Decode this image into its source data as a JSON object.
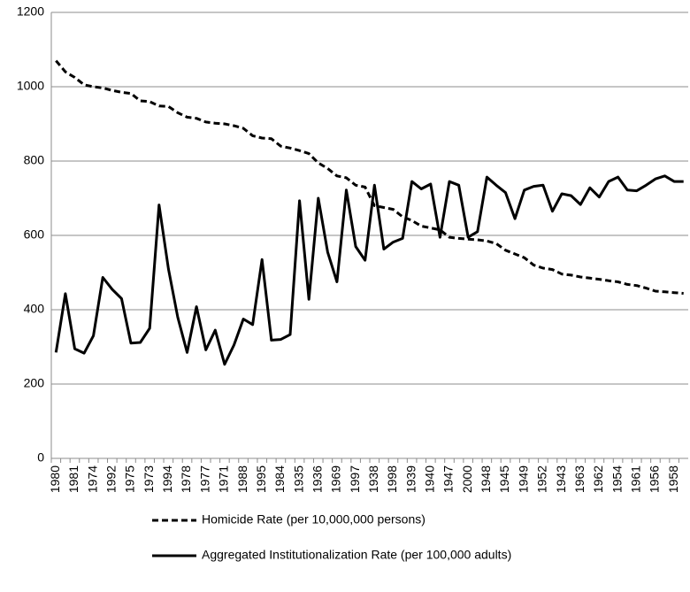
{
  "chart_data": {
    "type": "line",
    "categories": [
      "1980",
      null,
      "1981",
      null,
      "1974",
      null,
      "1992",
      null,
      "1975",
      null,
      "1973",
      null,
      "1994",
      null,
      "1978",
      null,
      "1977",
      null,
      "1971",
      null,
      "1988",
      null,
      "1995",
      null,
      "1984",
      null,
      "1935",
      null,
      "1936",
      null,
      "1969",
      null,
      "1997",
      null,
      "1938",
      null,
      "1998",
      null,
      "1939",
      null,
      "1940",
      null,
      "1947",
      null,
      "2000",
      null,
      "1948",
      null,
      "1945",
      null,
      "1949",
      null,
      "1952",
      null,
      "1943",
      null,
      "1963",
      null,
      "1962",
      null,
      "1954",
      null,
      "1961",
      null,
      "1956",
      null,
      "1958",
      null
    ],
    "series": [
      {
        "name": "Homicide Rate (per 10,000,000 persons)",
        "color": "#000000",
        "dashed": true,
        "values": [
          1070,
          1040,
          1025,
          1005,
          1000,
          997,
          990,
          985,
          982,
          962,
          960,
          948,
          947,
          930,
          918,
          915,
          905,
          902,
          900,
          895,
          888,
          868,
          862,
          860,
          840,
          835,
          828,
          820,
          795,
          780,
          760,
          755,
          735,
          730,
          680,
          675,
          670,
          650,
          640,
          625,
          620,
          615,
          595,
          592,
          590,
          588,
          585,
          578,
          560,
          550,
          540,
          520,
          512,
          508,
          496,
          493,
          488,
          485,
          482,
          478,
          475,
          468,
          465,
          458,
          450,
          448,
          446,
          444
        ]
      },
      {
        "name": "Aggregated Institutionalization Rate (per 100,000 adults)",
        "color": "#000000",
        "dashed": false,
        "values": [
          285,
          443,
          295,
          283,
          330,
          487,
          455,
          430,
          310,
          312,
          350,
          682,
          510,
          380,
          285,
          408,
          292,
          345,
          253,
          305,
          375,
          360,
          535,
          318,
          320,
          333,
          693,
          428,
          700,
          555,
          475,
          722,
          570,
          533,
          735,
          563,
          582,
          592,
          745,
          725,
          738,
          595,
          745,
          735,
          595,
          610,
          757,
          735,
          715,
          645,
          722,
          732,
          735,
          665,
          712,
          707,
          683,
          728,
          703,
          745,
          757,
          722,
          720,
          735,
          752,
          760,
          745,
          745
        ]
      }
    ],
    "ylim": [
      0,
      1200
    ],
    "yticks": [
      0,
      200,
      400,
      600,
      800,
      1000,
      1200
    ],
    "grid": true
  }
}
